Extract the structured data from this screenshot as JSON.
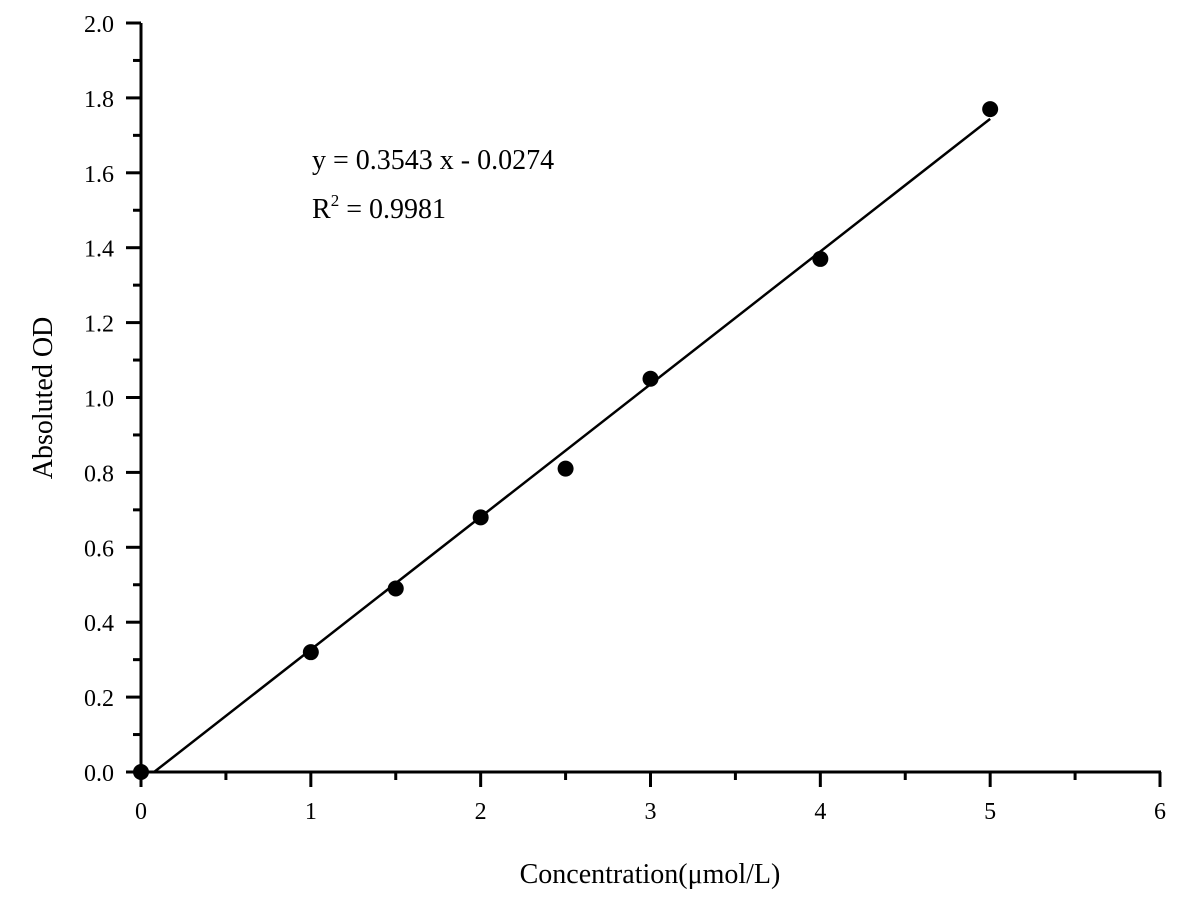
{
  "chart_data": {
    "type": "scatter",
    "title": "",
    "xlabel": "Concentration(μmol/L)",
    "ylabel": "Absoluted OD",
    "xlim": [
      0,
      6
    ],
    "ylim": [
      0,
      2.0
    ],
    "grid": false,
    "legend": null,
    "x_ticks": [
      "0",
      "1",
      "2",
      "3",
      "4",
      "5",
      "6"
    ],
    "y_ticks": [
      "0.0",
      "0.2",
      "0.4",
      "0.6",
      "0.8",
      "1.0",
      "1.2",
      "1.4",
      "1.6",
      "1.8",
      "2.0"
    ],
    "series": [
      {
        "name": "data",
        "marker": "filled-circle",
        "color": "#000000",
        "x": [
          0,
          1,
          1.5,
          2,
          2.5,
          3,
          4,
          5
        ],
        "y": [
          0.0,
          0.32,
          0.49,
          0.68,
          0.81,
          1.05,
          1.37,
          1.77
        ]
      },
      {
        "name": "linear-fit",
        "type": "line",
        "color": "#000000",
        "slope": 0.3543,
        "intercept": -0.0274,
        "x_range": [
          0.077,
          5
        ]
      }
    ],
    "annotations": [
      {
        "text": "y = 0.3543 x - 0.0274"
      },
      {
        "text": "R2 = 0.9981"
      }
    ]
  },
  "labels": {
    "equation": "y = 0.3543 x - 0.0274",
    "r2_prefix": "R",
    "r2_sup": "2",
    "r2_value": " = 0.9981",
    "xlabel": "Concentration(μmol/L)",
    "ylabel": "Absoluted OD"
  }
}
